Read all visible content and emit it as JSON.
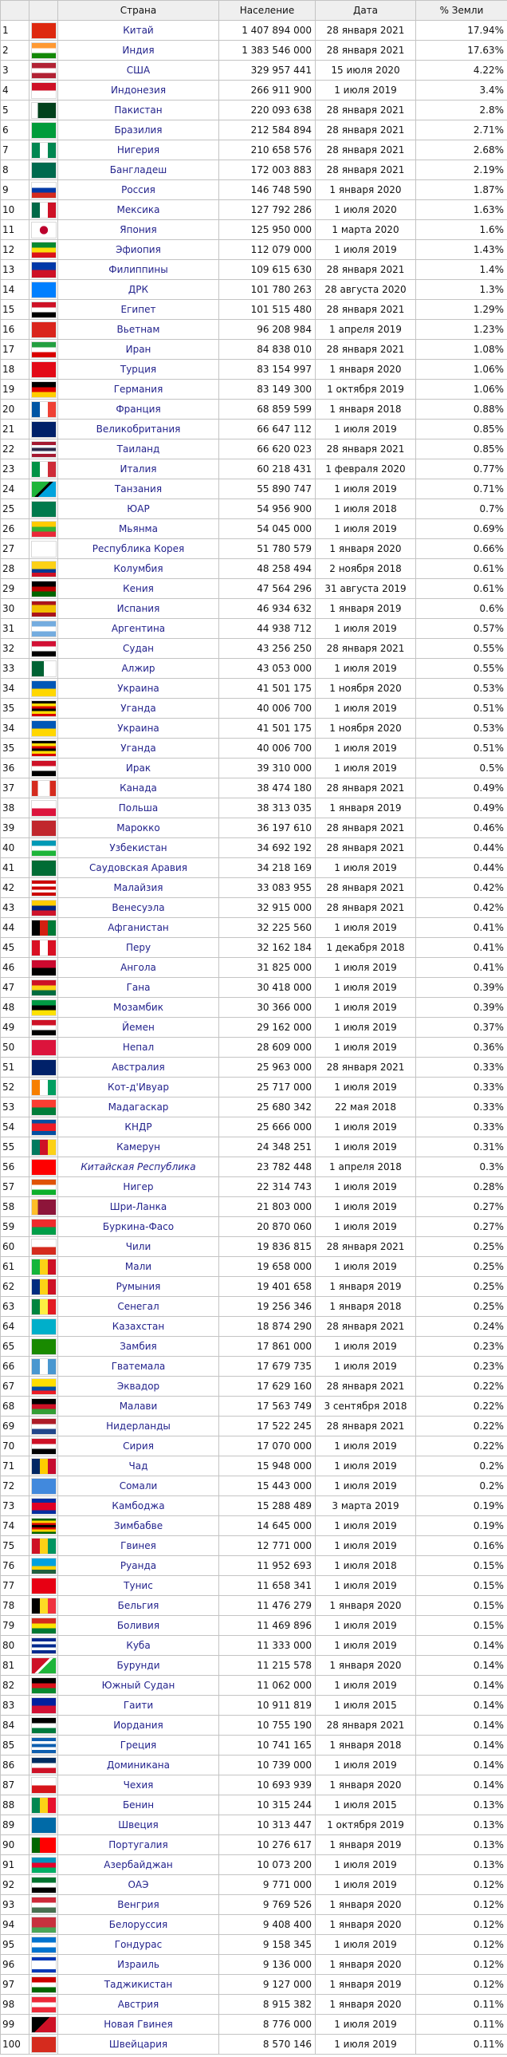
{
  "table": {
    "header": [
      "Страна",
      "Население",
      "Дата",
      "% Земли"
    ],
    "rows": [
      {
        "rank": 1,
        "country": "Китай",
        "population": "1 407 894 000",
        "date": "28 января 2021",
        "share": "17.94%"
      },
      {
        "rank": 2,
        "country": "Индия",
        "population": "1 383 546 000",
        "date": "28 января 2021",
        "share": "17.63%"
      },
      {
        "rank": 3,
        "country": "США",
        "population": "329 957 441",
        "date": "15 июля 2020",
        "share": "4.22%"
      },
      {
        "rank": 4,
        "country": "Индонезия",
        "population": "266 911 900",
        "date": "1 июля 2019",
        "share": "3.4%"
      },
      {
        "rank": 5,
        "country": "Пакистан",
        "population": "220 093 638",
        "date": "28 января 2021",
        "share": "2.8%"
      },
      {
        "rank": 6,
        "country": "Бразилия",
        "population": "212 584 894",
        "date": "28 января 2021",
        "share": "2.71%"
      },
      {
        "rank": 7,
        "country": "Нигерия",
        "population": "210 658 576",
        "date": "28 января 2021",
        "share": "2.68%"
      },
      {
        "rank": 8,
        "country": "Бангладеш",
        "population": "172 003 883",
        "date": "28 января 2021",
        "share": "2.19%"
      },
      {
        "rank": 9,
        "country": "Россия",
        "population": "146 748 590",
        "date": "1 января 2020",
        "share": "1.87%"
      },
      {
        "rank": 10,
        "country": "Мексика",
        "population": "127 792 286",
        "date": "1 июля 2020",
        "share": "1.63%"
      },
      {
        "rank": 11,
        "country": "Япония",
        "population": "125 950 000",
        "date": "1 марта 2020",
        "share": "1.6%"
      },
      {
        "rank": 12,
        "country": "Эфиопия",
        "population": "112 079 000",
        "date": "1 июля 2019",
        "share": "1.43%"
      },
      {
        "rank": 13,
        "country": "Филиппины",
        "population": "109 615 630",
        "date": "28 января 2021",
        "share": "1.4%"
      },
      {
        "rank": 14,
        "country": "ДРК",
        "population": "101 780 263",
        "date": "28 августа 2020",
        "share": "1.3%"
      },
      {
        "rank": 15,
        "country": "Египет",
        "population": "101 515 480",
        "date": "28 января 2021",
        "share": "1.29%"
      },
      {
        "rank": 16,
        "country": "Вьетнам",
        "population": "96 208 984",
        "date": "1 апреля 2019",
        "share": "1.23%"
      },
      {
        "rank": 17,
        "country": "Иран",
        "population": "84 838 010",
        "date": "28 января 2021",
        "share": "1.08%"
      },
      {
        "rank": 18,
        "country": "Турция",
        "population": "83 154 997",
        "date": "1 января 2020",
        "share": "1.06%"
      },
      {
        "rank": 19,
        "country": "Германия",
        "population": "83 149 300",
        "date": "1 октября 2019",
        "share": "1.06%"
      },
      {
        "rank": 20,
        "country": "Франция",
        "population": "68 859 599",
        "date": "1 января 2018",
        "share": "0.88%"
      },
      {
        "rank": 21,
        "country": "Великобритания",
        "population": "66 647 112",
        "date": "1 июля 2019",
        "share": "0.85%"
      },
      {
        "rank": 22,
        "country": "Таиланд",
        "population": "66 620 023",
        "date": "28 января 2021",
        "share": "0.85%"
      },
      {
        "rank": 23,
        "country": "Италия",
        "population": "60 218 431",
        "date": "1 февраля 2020",
        "share": "0.77%"
      },
      {
        "rank": 24,
        "country": "Танзания",
        "population": "55 890 747",
        "date": "1 июля 2019",
        "share": "0.71%"
      },
      {
        "rank": 25,
        "country": "ЮАР",
        "population": "54 956 900",
        "date": "1 июля 2018",
        "share": "0.7%"
      },
      {
        "rank": 26,
        "country": "Мьянма",
        "population": "54 045 000",
        "date": "1 июля 2019",
        "share": "0.69%"
      },
      {
        "rank": 27,
        "country": "Республика Корея",
        "population": "51 780 579",
        "date": "1 января 2020",
        "share": "0.66%"
      },
      {
        "rank": 28,
        "country": "Колумбия",
        "population": "48 258 494",
        "date": "2 ноября 2018",
        "share": "0.61%"
      },
      {
        "rank": 29,
        "country": "Кения",
        "population": "47 564 296",
        "date": "31 августа 2019",
        "share": "0.61%"
      },
      {
        "rank": 30,
        "country": "Испания",
        "population": "46 934 632",
        "date": "1 января 2019",
        "share": "0.6%"
      },
      {
        "rank": 31,
        "country": "Аргентина",
        "population": "44 938 712",
        "date": "1 июля 2019",
        "share": "0.57%"
      },
      {
        "rank": 32,
        "country": "Судан",
        "population": "43 256 250",
        "date": "28 января 2021",
        "share": "0.55%"
      },
      {
        "rank": 33,
        "country": "Алжир",
        "population": "43 053 000",
        "date": "1 июля 2019",
        "share": "0.55%"
      },
      {
        "rank": 34,
        "country": "Украина",
        "population": "41 501 175",
        "date": "1 ноября 2020",
        "share": "0.53%"
      },
      {
        "rank": 35,
        "country": "Уганда",
        "population": "40 006 700",
        "date": "1 июля 2019",
        "share": "0.51%"
      },
      {
        "rank": 34,
        "country": "Украина",
        "population": "41 501 175",
        "date": "1 ноября 2020",
        "share": "0.53%"
      },
      {
        "rank": 35,
        "country": "Уганда",
        "population": "40 006 700",
        "date": "1 июля 2019",
        "share": "0.51%"
      },
      {
        "rank": 36,
        "country": "Ирак",
        "population": "39 310 000",
        "date": "1 июля 2019",
        "share": "0.5%"
      },
      {
        "rank": 37,
        "country": "Канада",
        "population": "38 474 180",
        "date": "28 января 2021",
        "share": "0.49%"
      },
      {
        "rank": 38,
        "country": "Польша",
        "population": "38 313 035",
        "date": "1 января 2019",
        "share": "0.49%"
      },
      {
        "rank": 39,
        "country": "Марокко",
        "population": "36 197 610",
        "date": "28 января 2021",
        "share": "0.46%"
      },
      {
        "rank": 40,
        "country": "Узбекистан",
        "population": "34 692 192",
        "date": "28 января 2021",
        "share": "0.44%"
      },
      {
        "rank": 41,
        "country": "Саудовская Аравия",
        "population": "34 218 169",
        "date": "1 июля 2019",
        "share": "0.44%"
      },
      {
        "rank": 42,
        "country": "Малайзия",
        "population": "33 083 955",
        "date": "28 января 2021",
        "share": "0.42%"
      },
      {
        "rank": 43,
        "country": "Венесуэла",
        "population": "32 915 000",
        "date": "28 января 2021",
        "share": "0.42%"
      },
      {
        "rank": 44,
        "country": "Афганистан",
        "population": "32 225 560",
        "date": "1 июля 2019",
        "share": "0.41%"
      },
      {
        "rank": 45,
        "country": "Перу",
        "population": "32 162 184",
        "date": "1 декабря 2018",
        "share": "0.41%"
      },
      {
        "rank": 46,
        "country": "Ангола",
        "population": "31 825 000",
        "date": "1 июля 2019",
        "share": "0.41%"
      },
      {
        "rank": 47,
        "country": "Гана",
        "population": "30 418 000",
        "date": "1 июля 2019",
        "share": "0.39%"
      },
      {
        "rank": 48,
        "country": "Мозамбик",
        "population": "30 366 000",
        "date": "1 июля 2019",
        "share": "0.39%"
      },
      {
        "rank": 49,
        "country": "Йемен",
        "population": "29 162 000",
        "date": "1 июля 2019",
        "share": "0.37%"
      },
      {
        "rank": 50,
        "country": "Непал",
        "population": "28 609 000",
        "date": "1 июля 2019",
        "share": "0.36%"
      },
      {
        "rank": 51,
        "country": "Австралия",
        "population": "25 963 000",
        "date": "28 января 2021",
        "share": "0.33%"
      },
      {
        "rank": 52,
        "country": "Кот-д'Ивуар",
        "population": "25 717 000",
        "date": "1 июля 2019",
        "share": "0.33%"
      },
      {
        "rank": 53,
        "country": "Мадагаскар",
        "population": "25 680 342",
        "date": "22 мая 2018",
        "share": "0.33%"
      },
      {
        "rank": 54,
        "country": "КНДР",
        "population": "25 666 000",
        "date": "1 июля 2019",
        "share": "0.33%"
      },
      {
        "rank": 55,
        "country": "Камерун",
        "population": "24 348 251",
        "date": "1 июля 2019",
        "share": "0.31%"
      },
      {
        "rank": 56,
        "country": "Китайская Республика",
        "population": "23 782 448",
        "date": "1 апреля 2018",
        "share": "0.3%",
        "italic": true
      },
      {
        "rank": 57,
        "country": "Нигер",
        "population": "22 314 743",
        "date": "1 июля 2019",
        "share": "0.28%"
      },
      {
        "rank": 58,
        "country": "Шри-Ланка",
        "population": "21 803 000",
        "date": "1 июля 2019",
        "share": "0.27%"
      },
      {
        "rank": 59,
        "country": "Буркина-Фасо",
        "population": "20 870 060",
        "date": "1 июля 2019",
        "share": "0.27%"
      },
      {
        "rank": 60,
        "country": "Чили",
        "population": "19 836 815",
        "date": "28 января 2021",
        "share": "0.25%"
      },
      {
        "rank": 61,
        "country": "Мали",
        "population": "19 658 000",
        "date": "1 июля 2019",
        "share": "0.25%"
      },
      {
        "rank": 62,
        "country": "Румыния",
        "population": "19 401 658",
        "date": "1 января 2019",
        "share": "0.25%"
      },
      {
        "rank": 63,
        "country": "Сенегал",
        "population": "19 256 346",
        "date": "1 января 2018",
        "share": "0.25%"
      },
      {
        "rank": 64,
        "country": "Казахстан",
        "population": "18 874 290",
        "date": "28 января 2021",
        "share": "0.24%"
      },
      {
        "rank": 65,
        "country": "Замбия",
        "population": "17 861 000",
        "date": "1 июля 2019",
        "share": "0.23%"
      },
      {
        "rank": 66,
        "country": "Гватемала",
        "population": "17 679 735",
        "date": "1 июля 2019",
        "share": "0.23%"
      },
      {
        "rank": 67,
        "country": "Эквадор",
        "population": "17 629 160",
        "date": "28 января 2021",
        "share": "0.22%"
      },
      {
        "rank": 68,
        "country": "Малави",
        "population": "17 563 749",
        "date": "3 сентября 2018",
        "share": "0.22%"
      },
      {
        "rank": 69,
        "country": "Нидерланды",
        "population": "17 522 245",
        "date": "28 января 2021",
        "share": "0.22%"
      },
      {
        "rank": 70,
        "country": "Сирия",
        "population": "17 070 000",
        "date": "1 июля 2019",
        "share": "0.22%"
      },
      {
        "rank": 71,
        "country": "Чад",
        "population": "15 948 000",
        "date": "1 июля 2019",
        "share": "0.2%"
      },
      {
        "rank": 72,
        "country": "Сомали",
        "population": "15 443 000",
        "date": "1 июля 2019",
        "share": "0.2%"
      },
      {
        "rank": 73,
        "country": "Камбоджа",
        "population": "15 288 489",
        "date": "3 марта 2019",
        "share": "0.19%"
      },
      {
        "rank": 74,
        "country": "Зимбабве",
        "population": "14 645 000",
        "date": "1 июля 2019",
        "share": "0.19%"
      },
      {
        "rank": 75,
        "country": "Гвинея",
        "population": "12 771 000",
        "date": "1 июля 2019",
        "share": "0.16%"
      },
      {
        "rank": 76,
        "country": "Руанда",
        "population": "11 952 693",
        "date": "1 июля 2018",
        "share": "0.15%"
      },
      {
        "rank": 77,
        "country": "Тунис",
        "population": "11 658 341",
        "date": "1 июля 2019",
        "share": "0.15%"
      },
      {
        "rank": 78,
        "country": "Бельгия",
        "population": "11 476 279",
        "date": "1 января 2020",
        "share": "0.15%"
      },
      {
        "rank": 79,
        "country": "Боливия",
        "population": "11 469 896",
        "date": "1 июля 2019",
        "share": "0.15%"
      },
      {
        "rank": 80,
        "country": "Куба",
        "population": "11 333 000",
        "date": "1 июля 2019",
        "share": "0.14%"
      },
      {
        "rank": 81,
        "country": "Бурунди",
        "population": "11 215 578",
        "date": "1 января 2020",
        "share": "0.14%"
      },
      {
        "rank": 82,
        "country": "Южный Судан",
        "population": "11 062 000",
        "date": "1 июля 2019",
        "share": "0.14%"
      },
      {
        "rank": 83,
        "country": "Гаити",
        "population": "10 911 819",
        "date": "1 июля 2015",
        "share": "0.14%"
      },
      {
        "rank": 84,
        "country": "Иордания",
        "population": "10 755 190",
        "date": "28 января 2021",
        "share": "0.14%"
      },
      {
        "rank": 85,
        "country": "Греция",
        "population": "10 741 165",
        "date": "1 января 2018",
        "share": "0.14%"
      },
      {
        "rank": 86,
        "country": "Доминикана",
        "population": "10 739 000",
        "date": "1 июля 2019",
        "share": "0.14%"
      },
      {
        "rank": 87,
        "country": "Чехия",
        "population": "10 693 939",
        "date": "1 января 2020",
        "share": "0.14%"
      },
      {
        "rank": 88,
        "country": "Бенин",
        "population": "10 315 244",
        "date": "1 июля 2015",
        "share": "0.13%"
      },
      {
        "rank": 89,
        "country": "Швеция",
        "population": "10 313 447",
        "date": "1 октября 2019",
        "share": "0.13%"
      },
      {
        "rank": 90,
        "country": "Португалия",
        "population": "10 276 617",
        "date": "1 января 2019",
        "share": "0.13%"
      },
      {
        "rank": 91,
        "country": "Азербайджан",
        "population": "10 073 200",
        "date": "1 июля 2019",
        "share": "0.13%"
      },
      {
        "rank": 92,
        "country": "ОАЭ",
        "population": "9 771 000",
        "date": "1 июля 2019",
        "share": "0.12%"
      },
      {
        "rank": 93,
        "country": "Венгрия",
        "population": "9 769 526",
        "date": "1 января 2020",
        "share": "0.12%"
      },
      {
        "rank": 94,
        "country": "Белоруссия",
        "population": "9 408 400",
        "date": "1 января 2020",
        "share": "0.12%"
      },
      {
        "rank": 95,
        "country": "Гондурас",
        "population": "9 158 345",
        "date": "1 июля 2019",
        "share": "0.12%"
      },
      {
        "rank": 96,
        "country": "Израиль",
        "population": "9 136 000",
        "date": "1 января 2020",
        "share": "0.12%"
      },
      {
        "rank": 97,
        "country": "Таджикистан",
        "population": "9 127 000",
        "date": "1 января 2019",
        "share": "0.12%"
      },
      {
        "rank": 98,
        "country": "Австрия",
        "population": "8 915 382",
        "date": "1 января 2020",
        "share": "0.11%"
      },
      {
        "rank": 99,
        "country": "Новая Гвинея",
        "population": "8 776 000",
        "date": "1 июля 2019",
        "share": "0.11%"
      },
      {
        "rank": 100,
        "country": "Швейцария",
        "population": "8 570 146",
        "date": "1 июля 2019",
        "share": "0.11%"
      }
    ]
  }
}
